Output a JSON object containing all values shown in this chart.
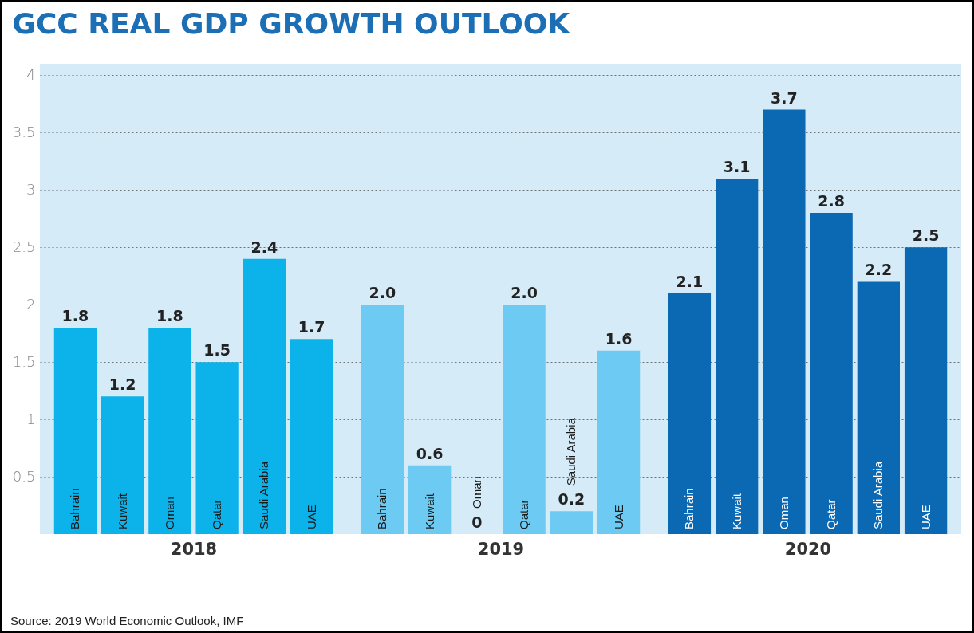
{
  "chart_data": [
    {
      "type": "bar",
      "title": "GCC REAL GDP GROWTH OUTLOOK",
      "annotations": [
        "Source: 2019 World Economic Outlook, IMF"
      ],
      "xlabel": "2018",
      "categories": [
        "Bahrain",
        "Kuwait",
        "Oman",
        "Qatar",
        "Saudi Arabia",
        "UAE"
      ],
      "values": [
        1.8,
        1.2,
        1.8,
        1.5,
        2.4,
        1.7
      ],
      "value_labels": [
        "1.8",
        "1.2",
        "1.8",
        "1.5",
        "2.4",
        "1.7"
      ],
      "color": "#0cb2ea",
      "ylim": [
        0,
        4.1
      ],
      "yticks": [
        0.5,
        1,
        1.5,
        2,
        2.5,
        3,
        3.5,
        4
      ],
      "grid": "y"
    },
    {
      "type": "bar",
      "xlabel": "2019",
      "categories": [
        "Bahrain",
        "Kuwait",
        "Oman",
        "Qatar",
        "Saudi Arabia",
        "UAE"
      ],
      "values": [
        2.0,
        0.6,
        0,
        2.0,
        0.2,
        1.6
      ],
      "value_labels": [
        "2.0",
        "0.6",
        "0",
        "2.0",
        "0.2",
        "1.6"
      ],
      "color": "#6dcbf3",
      "ylim": [
        0,
        4.1
      ],
      "yticks": [
        0.5,
        1,
        1.5,
        2,
        2.5,
        3,
        3.5,
        4
      ],
      "grid": "y",
      "tick_labels": "x"
    },
    {
      "type": "bar",
      "xlabel": "2020",
      "categories": [
        "Bahrain",
        "Kuwait",
        "Oman",
        "Qatar",
        "Saudi Arabia",
        "UAE"
      ],
      "values": [
        2.1,
        3.1,
        3.7,
        2.8,
        2.2,
        2.5
      ],
      "value_labels": [
        "2.1",
        "3.1",
        "3.7",
        "2.8",
        "2.2",
        "2.5"
      ],
      "color": "#0b68b3",
      "ylim": [
        0,
        4.1
      ],
      "yticks": [
        0.5,
        1,
        1.5,
        2,
        2.5,
        3,
        3.5,
        4
      ],
      "grid": "y",
      "tick_labels": "x"
    }
  ]
}
